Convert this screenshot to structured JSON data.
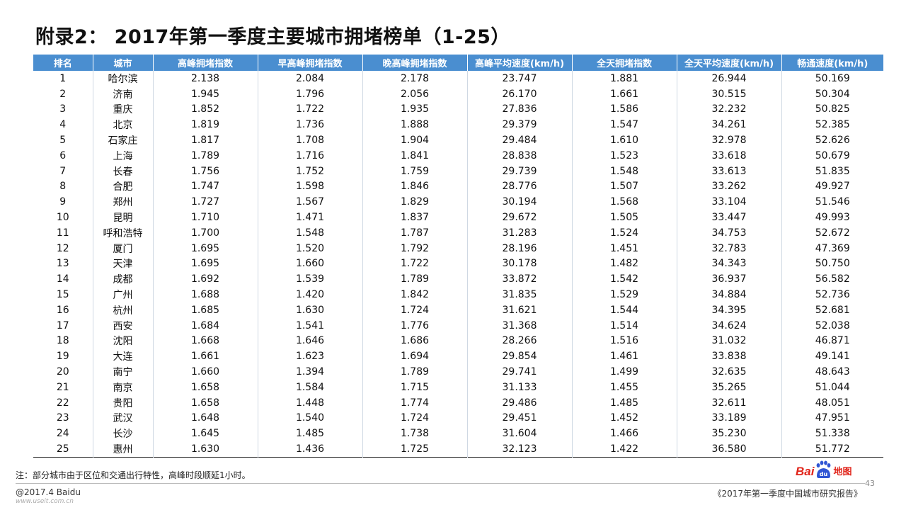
{
  "title": "附录2： 2017年第一季度主要城市拥堵榜单（1-25）",
  "table": {
    "headers": [
      "排名",
      "城市",
      "高峰拥堵指数",
      "早高峰拥堵指数",
      "晚高峰拥堵指数",
      "高峰平均速度(km/h)",
      "全天拥堵指数",
      "全天平均速度(km/h)",
      "畅通速度(km/h)"
    ],
    "rows": [
      [
        "1",
        "哈尔滨",
        "2.138",
        "2.084",
        "2.178",
        "23.747",
        "1.881",
        "26.944",
        "50.169"
      ],
      [
        "2",
        "济南",
        "1.945",
        "1.796",
        "2.056",
        "26.170",
        "1.661",
        "30.515",
        "50.304"
      ],
      [
        "3",
        "重庆",
        "1.852",
        "1.722",
        "1.935",
        "27.836",
        "1.586",
        "32.232",
        "50.825"
      ],
      [
        "4",
        "北京",
        "1.819",
        "1.736",
        "1.888",
        "29.379",
        "1.547",
        "34.261",
        "52.385"
      ],
      [
        "5",
        "石家庄",
        "1.817",
        "1.708",
        "1.904",
        "29.484",
        "1.610",
        "32.978",
        "52.626"
      ],
      [
        "6",
        "上海",
        "1.789",
        "1.716",
        "1.841",
        "28.838",
        "1.523",
        "33.618",
        "50.679"
      ],
      [
        "7",
        "长春",
        "1.756",
        "1.752",
        "1.759",
        "29.739",
        "1.548",
        "33.613",
        "51.835"
      ],
      [
        "8",
        "合肥",
        "1.747",
        "1.598",
        "1.846",
        "28.776",
        "1.507",
        "33.262",
        "49.927"
      ],
      [
        "9",
        "郑州",
        "1.727",
        "1.567",
        "1.829",
        "30.194",
        "1.568",
        "33.104",
        "51.546"
      ],
      [
        "10",
        "昆明",
        "1.710",
        "1.471",
        "1.837",
        "29.672",
        "1.505",
        "33.447",
        "49.993"
      ],
      [
        "11",
        "呼和浩特",
        "1.700",
        "1.548",
        "1.787",
        "31.283",
        "1.524",
        "34.753",
        "52.672"
      ],
      [
        "12",
        "厦门",
        "1.695",
        "1.520",
        "1.792",
        "28.196",
        "1.451",
        "32.783",
        "47.369"
      ],
      [
        "13",
        "天津",
        "1.695",
        "1.660",
        "1.722",
        "30.178",
        "1.482",
        "34.343",
        "50.750"
      ],
      [
        "14",
        "成都",
        "1.692",
        "1.539",
        "1.789",
        "33.872",
        "1.542",
        "36.937",
        "56.582"
      ],
      [
        "15",
        "广州",
        "1.688",
        "1.420",
        "1.842",
        "31.835",
        "1.529",
        "34.884",
        "52.736"
      ],
      [
        "16",
        "杭州",
        "1.685",
        "1.630",
        "1.724",
        "31.621",
        "1.544",
        "34.395",
        "52.681"
      ],
      [
        "17",
        "西安",
        "1.684",
        "1.541",
        "1.776",
        "31.368",
        "1.514",
        "34.624",
        "52.038"
      ],
      [
        "18",
        "沈阳",
        "1.668",
        "1.646",
        "1.686",
        "28.266",
        "1.516",
        "31.032",
        "46.871"
      ],
      [
        "19",
        "大连",
        "1.661",
        "1.623",
        "1.694",
        "29.854",
        "1.461",
        "33.838",
        "49.141"
      ],
      [
        "20",
        "南宁",
        "1.660",
        "1.394",
        "1.789",
        "29.741",
        "1.499",
        "32.635",
        "48.643"
      ],
      [
        "21",
        "南京",
        "1.658",
        "1.584",
        "1.715",
        "31.133",
        "1.455",
        "35.265",
        "51.044"
      ],
      [
        "22",
        "贵阳",
        "1.658",
        "1.448",
        "1.774",
        "29.486",
        "1.485",
        "32.611",
        "48.051"
      ],
      [
        "23",
        "武汉",
        "1.648",
        "1.540",
        "1.724",
        "29.451",
        "1.452",
        "33.189",
        "47.951"
      ],
      [
        "24",
        "长沙",
        "1.645",
        "1.485",
        "1.738",
        "31.604",
        "1.466",
        "35.230",
        "51.338"
      ],
      [
        "25",
        "惠州",
        "1.630",
        "1.436",
        "1.725",
        "32.123",
        "1.422",
        "36.580",
        "51.772"
      ]
    ]
  },
  "note": "注：部分城市由于区位和交通出行特性，高峰时段顺延1小时。",
  "copyright": "@2017.4 Baidu",
  "watermark": "www.useit.com.cn",
  "report_name": "《2017年第一季度中国城市研究报告》",
  "page_number": "43",
  "logo": {
    "brand_text": "Bai",
    "map_text": "地图",
    "paw_text": "du",
    "color": "#e1251b"
  },
  "colors": {
    "header_bg": "#4a8ed0",
    "header_text": "#ffffff"
  }
}
